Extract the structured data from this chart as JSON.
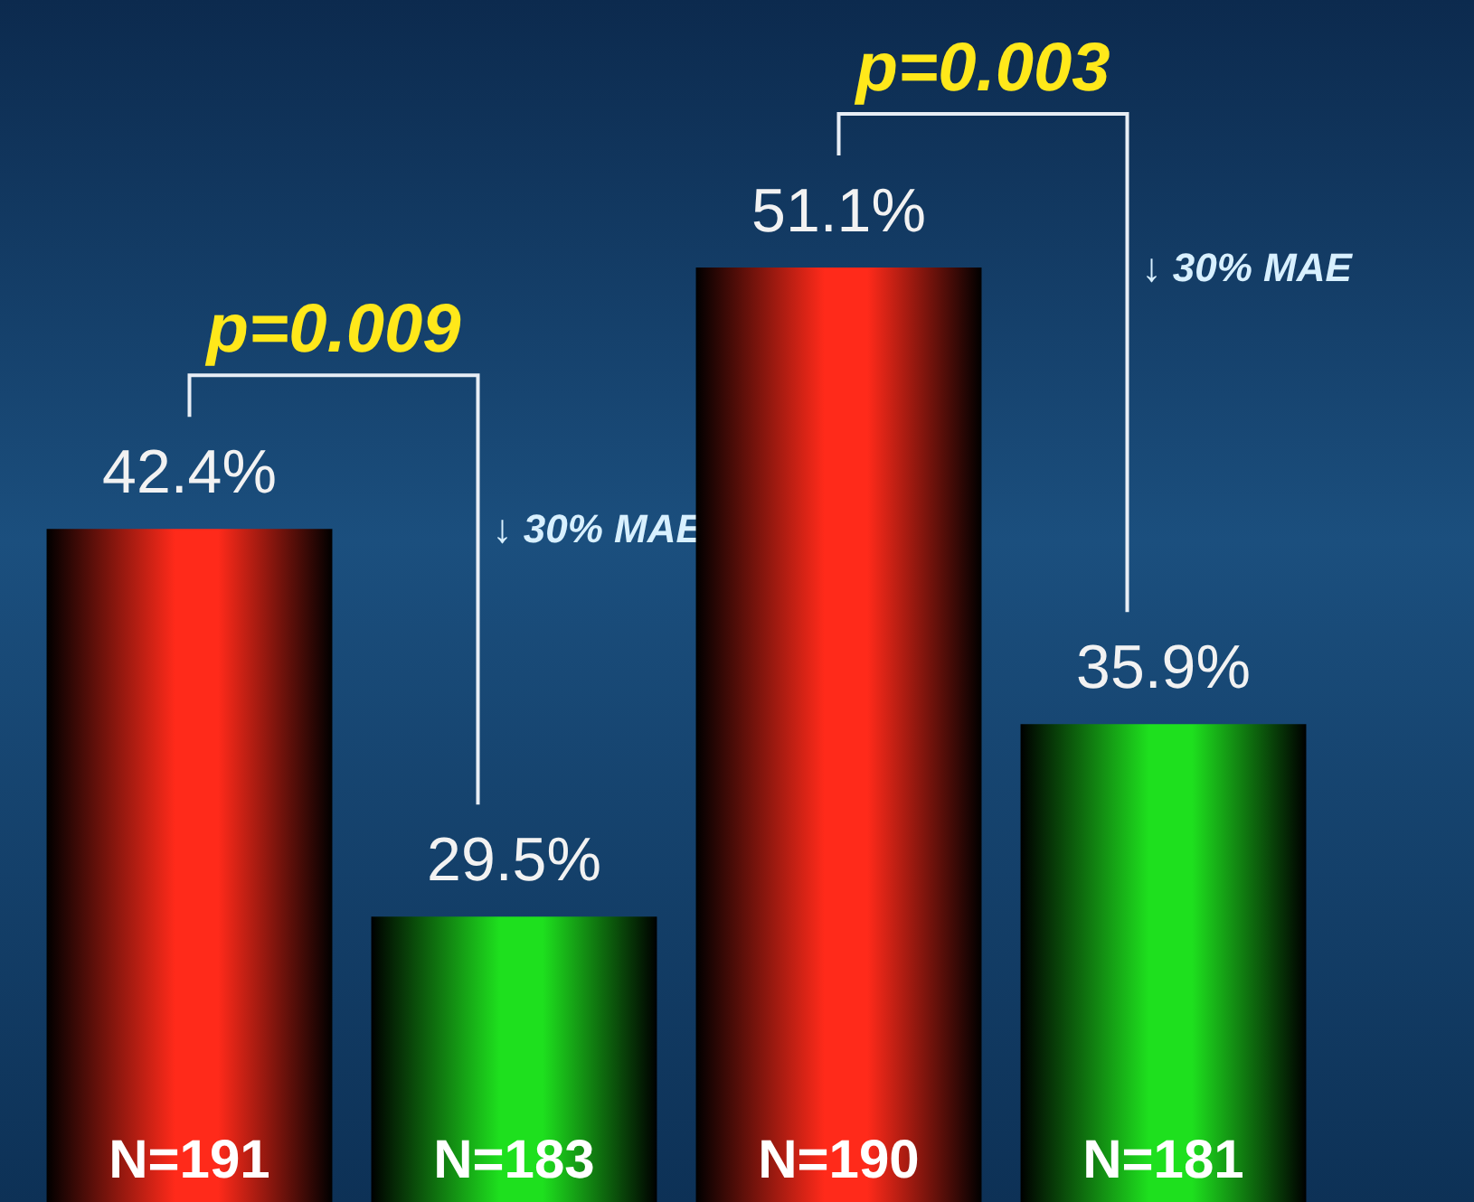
{
  "chart_data": {
    "type": "bar",
    "categories": [
      "N=191",
      "N=183",
      "N=190",
      "N=181"
    ],
    "values": [
      42.4,
      29.5,
      51.1,
      35.9
    ],
    "value_labels": [
      "42.4%",
      "29.5%",
      "51.1%",
      "35.9%"
    ],
    "colors": [
      "#ff2a1a",
      "#1ee01e",
      "#ff2a1a",
      "#1ee01e"
    ],
    "ylim": [
      20,
      60
    ],
    "annotations": [
      "p=0.009",
      "↓ 30% MAE",
      "p=0.003",
      "↓ 30% MAE"
    ]
  }
}
